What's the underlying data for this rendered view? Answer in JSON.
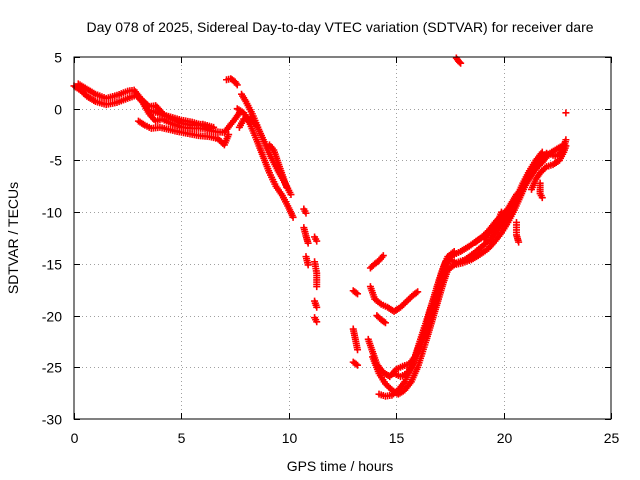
{
  "chart_data": {
    "type": "scatter",
    "title": "Day 078 of 2025, Sidereal Day-to-day VTEC variation (SDTVAR) for receiver dare",
    "xlabel": "GPS time / hours",
    "ylabel": "SDTVAR / TECUs",
    "xlim": [
      0,
      25
    ],
    "ylim": [
      -30,
      5
    ],
    "xticks": [
      0,
      5,
      10,
      15,
      20,
      25
    ],
    "yticks": [
      5,
      0,
      -5,
      -10,
      -15,
      -20,
      -25,
      -30
    ],
    "grid": true,
    "marker": "+",
    "marker_color": "#ff0000",
    "series": [
      {
        "name": "SDTVAR",
        "traces": [
          [
            [
              0.0,
              2.2
            ],
            [
              0.3,
              1.8
            ],
            [
              0.6,
              1.2
            ],
            [
              1.0,
              0.7
            ],
            [
              1.5,
              0.4
            ],
            [
              2.0,
              0.6
            ],
            [
              2.5,
              1.0
            ],
            [
              2.9,
              1.3
            ],
            [
              3.2,
              0.6
            ],
            [
              3.5,
              -0.5
            ],
            [
              3.8,
              -1.2
            ],
            [
              4.1,
              -1.0
            ],
            [
              4.5,
              -1.4
            ],
            [
              5.0,
              -1.8
            ],
            [
              5.5,
              -1.9
            ],
            [
              6.0,
              -1.9
            ],
            [
              6.5,
              -2.2
            ],
            [
              7.0,
              -2.3
            ],
            [
              7.3,
              -1.5
            ],
            [
              7.5,
              -1.0
            ],
            [
              7.7,
              -0.4
            ]
          ],
          [
            [
              0.2,
              2.4
            ],
            [
              0.6,
              1.9
            ],
            [
              1.0,
              1.4
            ],
            [
              1.5,
              1.0
            ],
            [
              2.0,
              1.3
            ],
            [
              2.5,
              1.7
            ],
            [
              2.8,
              1.8
            ],
            [
              3.1,
              1.0
            ],
            [
              3.5,
              0.2
            ],
            [
              3.8,
              0.3
            ],
            [
              4.2,
              -0.6
            ],
            [
              4.6,
              -1.0
            ],
            [
              5.0,
              -1.4
            ],
            [
              5.5,
              -1.6
            ],
            [
              6.0,
              -1.5
            ],
            [
              6.5,
              -1.8
            ]
          ],
          [
            [
              3.0,
              -1.2
            ],
            [
              3.3,
              -1.6
            ],
            [
              3.6,
              -1.9
            ],
            [
              4.0,
              -1.8
            ],
            [
              4.4,
              -2.0
            ],
            [
              4.8,
              -2.2
            ],
            [
              5.3,
              -2.4
            ],
            [
              5.8,
              -2.6
            ],
            [
              6.3,
              -2.7
            ],
            [
              6.7,
              -2.9
            ],
            [
              7.0,
              -3.5
            ],
            [
              7.2,
              -2.5
            ]
          ],
          [
            [
              3.6,
              -0.2
            ],
            [
              4.0,
              -0.5
            ],
            [
              4.5,
              -0.8
            ],
            [
              5.0,
              -1.1
            ],
            [
              5.5,
              -1.3
            ],
            [
              6.0,
              -1.6
            ],
            [
              6.4,
              -1.9
            ]
          ],
          [
            [
              7.1,
              2.8
            ],
            [
              7.3,
              2.9
            ],
            [
              7.5,
              2.6
            ],
            [
              7.6,
              2.3
            ]
          ],
          [
            [
              7.6,
              0.0
            ],
            [
              7.9,
              -0.4
            ],
            [
              8.2,
              -1.5
            ],
            [
              8.5,
              -3.0
            ],
            [
              8.8,
              -4.6
            ],
            [
              9.1,
              -6.2
            ],
            [
              9.4,
              -7.5
            ],
            [
              9.7,
              -8.4
            ],
            [
              10.0,
              -9.6
            ],
            [
              10.2,
              -10.5
            ]
          ],
          [
            [
              7.8,
              1.4
            ],
            [
              8.0,
              0.7
            ],
            [
              8.3,
              -0.5
            ],
            [
              8.6,
              -2.0
            ],
            [
              8.9,
              -3.4
            ],
            [
              9.2,
              -4.8
            ],
            [
              9.5,
              -6.0
            ],
            [
              9.8,
              -7.1
            ],
            [
              10.1,
              -8.3
            ]
          ],
          [
            [
              7.7,
              -1.8
            ],
            [
              7.9,
              -1.0
            ],
            [
              8.2,
              -0.8
            ],
            [
              8.5,
              -1.6
            ]
          ],
          [
            [
              9.1,
              -3.5
            ],
            [
              9.3,
              -4.0
            ],
            [
              9.5,
              -5.2
            ],
            [
              9.7,
              -6.4
            ],
            [
              9.9,
              -7.6
            ]
          ],
          [
            [
              10.7,
              -9.7
            ],
            [
              10.8,
              -10.1
            ]
          ],
          [
            [
              10.7,
              -11.5
            ],
            [
              10.8,
              -12.3
            ],
            [
              10.9,
              -13.0
            ]
          ],
          [
            [
              10.8,
              -14.3
            ],
            [
              10.9,
              -15.1
            ]
          ],
          [
            [
              11.2,
              -12.4
            ],
            [
              11.3,
              -12.8
            ]
          ],
          [
            [
              11.2,
              -14.8
            ],
            [
              11.3,
              -15.9
            ],
            [
              11.3,
              -17.2
            ]
          ],
          [
            [
              11.2,
              -18.6
            ],
            [
              11.3,
              -19.2
            ]
          ],
          [
            [
              11.2,
              -20.2
            ],
            [
              11.3,
              -20.6
            ]
          ],
          [
            [
              13.0,
              -17.6
            ],
            [
              13.2,
              -17.9
            ]
          ],
          [
            [
              13.0,
              -21.3
            ],
            [
              13.1,
              -22.3
            ],
            [
              13.2,
              -23.3
            ]
          ],
          [
            [
              13.0,
              -24.5
            ],
            [
              13.2,
              -24.8
            ]
          ],
          [
            [
              13.8,
              -17.2
            ],
            [
              14.0,
              -18.4
            ],
            [
              14.3,
              -18.9
            ],
            [
              14.6,
              -19.2
            ],
            [
              14.9,
              -19.6
            ],
            [
              15.2,
              -19.2
            ],
            [
              15.5,
              -18.6
            ],
            [
              15.8,
              -18.0
            ],
            [
              16.0,
              -17.7
            ]
          ],
          [
            [
              13.8,
              -15.4
            ],
            [
              14.0,
              -15.0
            ],
            [
              14.2,
              -14.7
            ],
            [
              14.4,
              -14.2
            ]
          ],
          [
            [
              14.1,
              -20.0
            ],
            [
              14.3,
              -20.4
            ],
            [
              14.5,
              -20.7
            ]
          ],
          [
            [
              13.7,
              -22.3
            ],
            [
              13.9,
              -23.5
            ],
            [
              14.1,
              -24.7
            ],
            [
              14.4,
              -25.5
            ],
            [
              14.7,
              -25.9
            ],
            [
              15.0,
              -25.2
            ],
            [
              15.3,
              -24.9
            ],
            [
              15.6,
              -24.7
            ],
            [
              15.9,
              -23.9
            ],
            [
              16.1,
              -23.0
            ],
            [
              16.3,
              -22.0
            ],
            [
              16.5,
              -21.0
            ],
            [
              16.7,
              -19.7
            ],
            [
              16.9,
              -18.3
            ],
            [
              17.1,
              -16.8
            ],
            [
              17.3,
              -15.4
            ],
            [
              17.5,
              -14.6
            ],
            [
              17.8,
              -14.9
            ],
            [
              18.2,
              -14.6
            ],
            [
              18.6,
              -14.0
            ],
            [
              19.0,
              -13.3
            ],
            [
              19.4,
              -12.6
            ],
            [
              19.7,
              -11.8
            ],
            [
              20.0,
              -10.9
            ],
            [
              20.3,
              -9.8
            ],
            [
              20.6,
              -8.6
            ],
            [
              20.9,
              -7.2
            ],
            [
              21.2,
              -6.0
            ],
            [
              21.5,
              -5.0
            ],
            [
              21.8,
              -4.2
            ]
          ],
          [
            [
              13.9,
              -24.0
            ],
            [
              14.2,
              -25.6
            ],
            [
              14.5,
              -26.6
            ],
            [
              14.8,
              -27.2
            ],
            [
              15.1,
              -27.6
            ],
            [
              15.4,
              -27.2
            ],
            [
              15.7,
              -26.4
            ],
            [
              16.0,
              -25.0
            ],
            [
              16.2,
              -23.7
            ],
            [
              16.4,
              -22.4
            ],
            [
              16.6,
              -21.0
            ],
            [
              16.8,
              -19.6
            ],
            [
              17.0,
              -18.2
            ],
            [
              17.2,
              -16.8
            ],
            [
              17.4,
              -15.6
            ],
            [
              17.7,
              -15.1
            ],
            [
              18.1,
              -14.9
            ],
            [
              18.5,
              -14.6
            ],
            [
              18.9,
              -14.1
            ],
            [
              19.3,
              -13.5
            ],
            [
              19.6,
              -12.8
            ],
            [
              19.9,
              -12.0
            ],
            [
              20.2,
              -11.0
            ],
            [
              20.5,
              -9.8
            ],
            [
              20.8,
              -8.4
            ],
            [
              21.1,
              -7.0
            ],
            [
              21.4,
              -5.8
            ],
            [
              21.7,
              -4.9
            ],
            [
              22.0,
              -4.3
            ]
          ],
          [
            [
              14.2,
              -27.6
            ],
            [
              14.5,
              -27.8
            ],
            [
              14.8,
              -27.7
            ],
            [
              15.1,
              -27.2
            ],
            [
              15.4,
              -26.4
            ],
            [
              15.7,
              -25.1
            ],
            [
              15.9,
              -23.8
            ],
            [
              16.1,
              -22.5
            ],
            [
              16.3,
              -21.2
            ],
            [
              16.5,
              -19.9
            ],
            [
              16.7,
              -18.6
            ],
            [
              16.9,
              -17.2
            ],
            [
              17.1,
              -15.9
            ],
            [
              17.3,
              -14.8
            ],
            [
              17.6,
              -14.2
            ],
            [
              18.0,
              -13.8
            ],
            [
              18.4,
              -13.3
            ],
            [
              18.8,
              -12.7
            ],
            [
              19.2,
              -12.2
            ],
            [
              19.6,
              -11.6
            ],
            [
              20.0,
              -10.6
            ],
            [
              20.4,
              -9.4
            ],
            [
              20.8,
              -7.9
            ],
            [
              21.2,
              -6.4
            ],
            [
              21.6,
              -5.2
            ],
            [
              22.0,
              -4.5
            ],
            [
              22.4,
              -4.0
            ],
            [
              22.8,
              -3.5
            ]
          ],
          [
            [
              14.9,
              -25.6
            ],
            [
              15.2,
              -25.9
            ],
            [
              15.5,
              -25.6
            ],
            [
              15.8,
              -24.6
            ],
            [
              16.0,
              -23.3
            ],
            [
              16.2,
              -22.1
            ],
            [
              16.4,
              -20.8
            ],
            [
              16.6,
              -19.4
            ],
            [
              16.8,
              -18.0
            ],
            [
              17.0,
              -16.6
            ],
            [
              17.2,
              -15.3
            ],
            [
              17.4,
              -14.3
            ],
            [
              17.7,
              -13.8
            ]
          ],
          [
            [
              18.7,
              -12.9
            ],
            [
              19.0,
              -12.4
            ],
            [
              19.3,
              -11.8
            ],
            [
              19.6,
              -11.0
            ],
            [
              19.9,
              -10.3
            ],
            [
              20.2,
              -9.7
            ],
            [
              20.4,
              -9.0
            ],
            [
              20.6,
              -8.3
            ],
            [
              20.8,
              -7.9
            ],
            [
              21.0,
              -7.4
            ],
            [
              21.2,
              -6.7
            ],
            [
              21.4,
              -6.1
            ],
            [
              21.6,
              -5.6
            ],
            [
              21.8,
              -5.2
            ],
            [
              22.0,
              -4.6
            ],
            [
              22.2,
              -4.4
            ],
            [
              22.4,
              -4.6
            ],
            [
              22.6,
              -4.4
            ],
            [
              22.8,
              -3.8
            ],
            [
              22.9,
              -3.0
            ]
          ],
          [
            [
              19.1,
              -12.6
            ],
            [
              19.4,
              -11.8
            ],
            [
              19.6,
              -11.2
            ],
            [
              19.8,
              -10.6
            ],
            [
              19.9,
              -10.0
            ]
          ],
          [
            [
              20.6,
              -11.0
            ],
            [
              20.6,
              -12.2
            ],
            [
              20.7,
              -12.9
            ]
          ],
          [
            [
              21.3,
              -7.8
            ],
            [
              21.5,
              -6.8
            ],
            [
              21.7,
              -6.2
            ],
            [
              22.0,
              -5.6
            ],
            [
              22.3,
              -5.4
            ],
            [
              22.6,
              -5.0
            ],
            [
              22.8,
              -4.2
            ],
            [
              22.9,
              -3.6
            ]
          ],
          [
            [
              21.7,
              -7.2
            ],
            [
              21.7,
              -8.2
            ],
            [
              21.8,
              -8.6
            ]
          ],
          [
            [
              17.8,
              4.9
            ],
            [
              17.9,
              4.6
            ],
            [
              18.0,
              4.4
            ]
          ],
          [
            [
              22.9,
              -0.4
            ]
          ]
        ]
      }
    ]
  }
}
